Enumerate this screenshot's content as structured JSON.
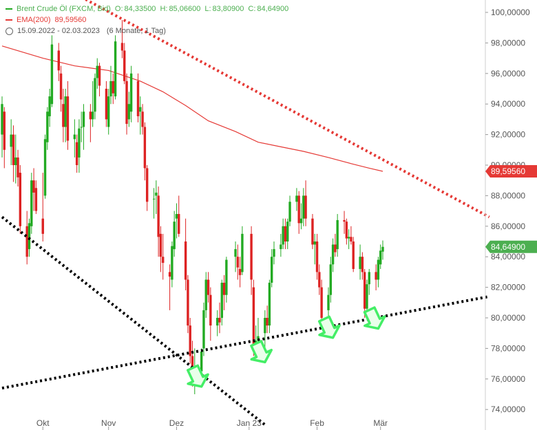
{
  "legend": {
    "instrument": "Brent Crude Öl (FXCM, Bid)",
    "o_label": "O:",
    "o_value": "84,33500",
    "h_label": "H:",
    "h_value": "85,06600",
    "l_label": "L:",
    "l_value": "83,80900",
    "c_label": "C:",
    "c_value": "84,64900",
    "ema_label": "EMA(200)",
    "ema_value": "89,59560",
    "range": "15.09.2022 - 02.03.2023",
    "period": "(6 Monate, 1 Tag)"
  },
  "badges": {
    "ema": "89,59560",
    "last": "84,64900"
  },
  "colors": {
    "up": "#22aa22",
    "down": "#dd2222",
    "ema": "#e53935",
    "trend_red": "#e53935",
    "trend_black": "#000000",
    "arrow": "#44ee66",
    "badge_ema": "#e53935",
    "badge_last": "#4caf50"
  },
  "chart_data": {
    "type": "candlestick",
    "ylim": [
      73.0,
      101.0
    ],
    "y_ticks": [
      "100,00000",
      "98,00000",
      "96,00000",
      "94,00000",
      "92,00000",
      "90,00000",
      "88,00000",
      "86,00000",
      "84,00000",
      "82,00000",
      "80,00000",
      "78,00000",
      "76,00000",
      "74,00000"
    ],
    "y_tick_values": [
      100,
      98,
      96,
      94,
      92,
      90,
      88,
      86,
      84,
      82,
      80,
      78,
      76,
      74
    ],
    "x_ticks": [
      {
        "label": "Okt",
        "date": "2022-10-03"
      },
      {
        "label": "Nov",
        "date": "2022-11-01"
      },
      {
        "label": "Dez",
        "date": "2022-12-01"
      },
      {
        "label": "Jan 23",
        "date": "2023-01-02"
      },
      {
        "label": "Feb",
        "date": "2023-02-01"
      },
      {
        "label": "Mär",
        "date": "2023-03-01"
      }
    ],
    "candles": [
      {
        "d": "2022-09-15",
        "o": 92.0,
        "h": 94.5,
        "l": 90.5,
        "c": 94.0
      },
      {
        "d": "2022-09-16",
        "o": 93.5,
        "h": 93.8,
        "l": 89.8,
        "c": 91.0
      },
      {
        "d": "2022-09-19",
        "o": 91.2,
        "h": 93.0,
        "l": 90.0,
        "c": 92.0
      },
      {
        "d": "2022-09-20",
        "o": 92.0,
        "h": 92.6,
        "l": 88.9,
        "c": 90.0
      },
      {
        "d": "2022-09-21",
        "o": 90.0,
        "h": 92.0,
        "l": 88.8,
        "c": 90.5
      },
      {
        "d": "2022-09-22",
        "o": 90.5,
        "h": 91.0,
        "l": 88.6,
        "c": 89.2
      },
      {
        "d": "2022-09-23",
        "o": 89.5,
        "h": 90.0,
        "l": 85.5,
        "c": 86.0
      },
      {
        "d": "2022-09-26",
        "o": 86.0,
        "h": 87.0,
        "l": 83.5,
        "c": 84.0
      },
      {
        "d": "2022-09-27",
        "o": 84.5,
        "h": 86.5,
        "l": 84.0,
        "c": 86.2
      },
      {
        "d": "2022-09-28",
        "o": 86.0,
        "h": 89.5,
        "l": 85.5,
        "c": 89.0
      },
      {
        "d": "2022-09-29",
        "o": 89.0,
        "h": 89.8,
        "l": 87.0,
        "c": 88.2
      },
      {
        "d": "2022-09-30",
        "o": 88.5,
        "h": 89.0,
        "l": 86.8,
        "c": 87.0
      },
      {
        "d": "2022-10-03",
        "o": 86.5,
        "h": 89.5,
        "l": 85.0,
        "c": 85.5
      },
      {
        "d": "2022-10-04",
        "o": 88.0,
        "h": 92.0,
        "l": 87.8,
        "c": 91.7
      },
      {
        "d": "2022-10-05",
        "o": 91.5,
        "h": 93.8,
        "l": 91.0,
        "c": 93.5
      },
      {
        "d": "2022-10-06",
        "o": 93.2,
        "h": 95.0,
        "l": 92.5,
        "c": 94.5
      },
      {
        "d": "2022-10-07",
        "o": 94.0,
        "h": 98.5,
        "l": 93.8,
        "c": 97.9
      },
      {
        "d": "2022-10-10",
        "o": 97.5,
        "h": 98.0,
        "l": 95.5,
        "c": 96.2
      },
      {
        "d": "2022-10-11",
        "o": 96.0,
        "h": 96.5,
        "l": 93.5,
        "c": 94.3
      },
      {
        "d": "2022-10-12",
        "o": 94.0,
        "h": 95.0,
        "l": 91.5,
        "c": 92.5
      },
      {
        "d": "2022-10-13",
        "o": 92.5,
        "h": 95.0,
        "l": 91.5,
        "c": 94.5
      },
      {
        "d": "2022-10-14",
        "o": 94.5,
        "h": 95.5,
        "l": 91.0,
        "c": 91.6
      },
      {
        "d": "2022-10-17",
        "o": 91.7,
        "h": 93.0,
        "l": 90.5,
        "c": 92.0
      },
      {
        "d": "2022-10-18",
        "o": 91.5,
        "h": 92.0,
        "l": 89.5,
        "c": 90.0
      },
      {
        "d": "2022-10-19",
        "o": 90.5,
        "h": 93.0,
        "l": 89.5,
        "c": 92.4
      },
      {
        "d": "2022-10-20",
        "o": 92.5,
        "h": 93.5,
        "l": 91.5,
        "c": 92.5
      },
      {
        "d": "2022-10-21",
        "o": 92.5,
        "h": 94.0,
        "l": 91.0,
        "c": 93.5
      },
      {
        "d": "2022-10-24",
        "o": 93.5,
        "h": 94.0,
        "l": 91.5,
        "c": 93.0
      },
      {
        "d": "2022-10-25",
        "o": 93.0,
        "h": 95.5,
        "l": 92.5,
        "c": 93.5
      },
      {
        "d": "2022-10-26",
        "o": 93.5,
        "h": 96.0,
        "l": 93.0,
        "c": 95.7
      },
      {
        "d": "2022-10-27",
        "o": 95.7,
        "h": 97.0,
        "l": 95.0,
        "c": 96.5
      },
      {
        "d": "2022-10-28",
        "o": 96.5,
        "h": 96.7,
        "l": 94.5,
        "c": 95.2
      },
      {
        "d": "2022-10-31",
        "o": 95.0,
        "h": 95.5,
        "l": 92.5,
        "c": 93.0
      },
      {
        "d": "2022-11-01",
        "o": 92.5,
        "h": 95.0,
        "l": 92.0,
        "c": 94.5
      },
      {
        "d": "2022-11-02",
        "o": 94.5,
        "h": 96.5,
        "l": 94.0,
        "c": 95.5
      },
      {
        "d": "2022-11-03",
        "o": 95.5,
        "h": 96.0,
        "l": 94.0,
        "c": 94.7
      },
      {
        "d": "2022-11-04",
        "o": 94.5,
        "h": 98.5,
        "l": 94.3,
        "c": 98.1
      },
      {
        "d": "2022-11-07",
        "o": 98.0,
        "h": 99.5,
        "l": 97.0,
        "c": 97.5
      },
      {
        "d": "2022-11-08",
        "o": 97.5,
        "h": 98.0,
        "l": 95.3,
        "c": 95.5
      },
      {
        "d": "2022-11-09",
        "o": 95.5,
        "h": 96.0,
        "l": 92.0,
        "c": 92.7
      },
      {
        "d": "2022-11-10",
        "o": 93.0,
        "h": 94.8,
        "l": 92.5,
        "c": 94.0
      },
      {
        "d": "2022-11-11",
        "o": 93.5,
        "h": 96.5,
        "l": 92.8,
        "c": 96.0
      },
      {
        "d": "2022-11-14",
        "o": 95.5,
        "h": 96.0,
        "l": 92.8,
        "c": 93.2
      },
      {
        "d": "2022-11-15",
        "o": 93.5,
        "h": 94.5,
        "l": 92.0,
        "c": 93.8
      },
      {
        "d": "2022-11-16",
        "o": 93.5,
        "h": 94.0,
        "l": 92.0,
        "c": 92.5
      },
      {
        "d": "2022-11-17",
        "o": 92.5,
        "h": 92.8,
        "l": 89.0,
        "c": 89.8
      },
      {
        "d": "2022-11-18",
        "o": 89.8,
        "h": 90.0,
        "l": 87.0,
        "c": 87.6
      },
      {
        "d": "2022-11-21",
        "o": 87.8,
        "h": 88.5,
        "l": 86.5,
        "c": 87.8
      },
      {
        "d": "2022-11-22",
        "o": 88.0,
        "h": 89.0,
        "l": 86.8,
        "c": 88.2
      },
      {
        "d": "2022-11-23",
        "o": 88.0,
        "h": 88.6,
        "l": 84.0,
        "c": 85.3
      },
      {
        "d": "2022-11-24",
        "o": 85.5,
        "h": 86.0,
        "l": 83.0,
        "c": 84.0
      },
      {
        "d": "2022-11-25",
        "o": 84.0,
        "h": 85.5,
        "l": 82.5,
        "c": 83.6
      },
      {
        "d": "2022-11-28",
        "o": 83.0,
        "h": 83.5,
        "l": 80.5,
        "c": 82.7
      },
      {
        "d": "2022-11-29",
        "o": 82.5,
        "h": 85.0,
        "l": 82.0,
        "c": 84.7
      },
      {
        "d": "2022-11-30",
        "o": 84.5,
        "h": 87.0,
        "l": 84.0,
        "c": 86.3
      },
      {
        "d": "2022-12-01",
        "o": 86.5,
        "h": 87.5,
        "l": 85.2,
        "c": 86.8
      },
      {
        "d": "2022-12-02",
        "o": 86.8,
        "h": 88.0,
        "l": 85.3,
        "c": 85.5
      },
      {
        "d": "2022-12-05",
        "o": 85.0,
        "h": 86.5,
        "l": 81.8,
        "c": 82.5
      },
      {
        "d": "2022-12-06",
        "o": 82.5,
        "h": 82.8,
        "l": 79.0,
        "c": 79.5
      },
      {
        "d": "2022-12-07",
        "o": 79.5,
        "h": 80.0,
        "l": 77.0,
        "c": 77.5
      },
      {
        "d": "2022-12-08",
        "o": 77.5,
        "h": 78.5,
        "l": 75.5,
        "c": 76.0
      },
      {
        "d": "2022-12-09",
        "o": 76.5,
        "h": 78.0,
        "l": 75.0,
        "c": 76.5
      },
      {
        "d": "2022-12-12",
        "o": 76.5,
        "h": 78.0,
        "l": 75.5,
        "c": 77.8
      },
      {
        "d": "2022-12-13",
        "o": 78.0,
        "h": 81.0,
        "l": 77.5,
        "c": 80.5
      },
      {
        "d": "2022-12-14",
        "o": 80.5,
        "h": 83.0,
        "l": 80.0,
        "c": 82.5
      },
      {
        "d": "2022-12-15",
        "o": 82.5,
        "h": 83.0,
        "l": 81.0,
        "c": 81.5
      },
      {
        "d": "2022-12-16",
        "o": 81.5,
        "h": 82.0,
        "l": 78.5,
        "c": 79.5
      },
      {
        "d": "2022-12-19",
        "o": 79.5,
        "h": 80.5,
        "l": 78.8,
        "c": 80.0
      },
      {
        "d": "2022-12-20",
        "o": 80.0,
        "h": 81.0,
        "l": 79.0,
        "c": 79.7
      },
      {
        "d": "2022-12-21",
        "o": 80.0,
        "h": 82.5,
        "l": 79.5,
        "c": 82.3
      },
      {
        "d": "2022-12-22",
        "o": 82.3,
        "h": 82.8,
        "l": 80.5,
        "c": 81.5
      },
      {
        "d": "2022-12-23",
        "o": 81.5,
        "h": 84.0,
        "l": 81.0,
        "c": 83.8
      },
      {
        "d": "2022-12-27",
        "o": 84.0,
        "h": 85.0,
        "l": 83.0,
        "c": 84.5
      },
      {
        "d": "2022-12-28",
        "o": 84.0,
        "h": 84.8,
        "l": 82.5,
        "c": 83.3
      },
      {
        "d": "2022-12-29",
        "o": 83.2,
        "h": 84.0,
        "l": 82.0,
        "c": 82.8
      },
      {
        "d": "2022-12-30",
        "o": 83.0,
        "h": 86.0,
        "l": 82.8,
        "c": 85.5
      },
      {
        "d": "2023-01-03",
        "o": 85.5,
        "h": 86.0,
        "l": 81.5,
        "c": 82.5
      },
      {
        "d": "2023-01-04",
        "o": 82.0,
        "h": 82.5,
        "l": 77.5,
        "c": 78.0
      },
      {
        "d": "2023-01-05",
        "o": 78.0,
        "h": 79.5,
        "l": 77.5,
        "c": 78.5
      },
      {
        "d": "2023-01-06",
        "o": 78.5,
        "h": 80.0,
        "l": 78.0,
        "c": 78.8
      },
      {
        "d": "2023-01-09",
        "o": 79.0,
        "h": 80.5,
        "l": 78.0,
        "c": 80.0
      },
      {
        "d": "2023-01-10",
        "o": 80.0,
        "h": 80.8,
        "l": 79.0,
        "c": 79.5
      },
      {
        "d": "2023-01-11",
        "o": 79.5,
        "h": 82.5,
        "l": 79.0,
        "c": 82.3
      },
      {
        "d": "2023-01-12",
        "o": 82.3,
        "h": 84.5,
        "l": 82.0,
        "c": 84.0
      },
      {
        "d": "2023-01-13",
        "o": 84.0,
        "h": 85.0,
        "l": 83.5,
        "c": 84.5
      },
      {
        "d": "2023-01-16",
        "o": 84.5,
        "h": 85.5,
        "l": 84.0,
        "c": 84.8
      },
      {
        "d": "2023-01-17",
        "o": 84.8,
        "h": 86.5,
        "l": 84.5,
        "c": 86.0
      },
      {
        "d": "2023-01-18",
        "o": 86.0,
        "h": 86.5,
        "l": 84.5,
        "c": 85.0
      },
      {
        "d": "2023-01-19",
        "o": 85.0,
        "h": 86.5,
        "l": 84.5,
        "c": 86.3
      },
      {
        "d": "2023-01-20",
        "o": 86.3,
        "h": 88.0,
        "l": 86.0,
        "c": 87.6
      },
      {
        "d": "2023-01-23",
        "o": 87.6,
        "h": 88.5,
        "l": 87.0,
        "c": 88.0
      },
      {
        "d": "2023-01-24",
        "o": 88.0,
        "h": 88.3,
        "l": 85.5,
        "c": 86.2
      },
      {
        "d": "2023-01-25",
        "o": 86.2,
        "h": 87.5,
        "l": 85.8,
        "c": 86.5
      },
      {
        "d": "2023-01-26",
        "o": 86.5,
        "h": 88.5,
        "l": 86.0,
        "c": 88.0
      },
      {
        "d": "2023-01-27",
        "o": 88.0,
        "h": 89.0,
        "l": 86.0,
        "c": 86.5
      },
      {
        "d": "2023-01-30",
        "o": 86.5,
        "h": 86.8,
        "l": 84.5,
        "c": 84.8
      },
      {
        "d": "2023-01-31",
        "o": 84.8,
        "h": 85.5,
        "l": 83.5,
        "c": 85.0
      },
      {
        "d": "2023-02-01",
        "o": 85.0,
        "h": 85.5,
        "l": 82.5,
        "c": 83.0
      },
      {
        "d": "2023-02-02",
        "o": 83.0,
        "h": 83.5,
        "l": 81.5,
        "c": 82.0
      },
      {
        "d": "2023-02-03",
        "o": 82.0,
        "h": 82.5,
        "l": 79.5,
        "c": 80.0
      },
      {
        "d": "2023-02-06",
        "o": 80.5,
        "h": 82.0,
        "l": 80.0,
        "c": 81.5
      },
      {
        "d": "2023-02-07",
        "o": 81.5,
        "h": 84.0,
        "l": 81.0,
        "c": 83.5
      },
      {
        "d": "2023-02-08",
        "o": 83.5,
        "h": 85.2,
        "l": 83.0,
        "c": 84.8
      },
      {
        "d": "2023-02-09",
        "o": 84.8,
        "h": 85.5,
        "l": 84.0,
        "c": 84.3
      },
      {
        "d": "2023-02-10",
        "o": 84.5,
        "h": 86.8,
        "l": 84.0,
        "c": 86.4
      },
      {
        "d": "2023-02-13",
        "o": 86.4,
        "h": 87.0,
        "l": 85.5,
        "c": 86.3
      },
      {
        "d": "2023-02-14",
        "o": 86.3,
        "h": 86.5,
        "l": 84.8,
        "c": 85.2
      },
      {
        "d": "2023-02-15",
        "o": 85.2,
        "h": 85.8,
        "l": 84.5,
        "c": 85.3
      },
      {
        "d": "2023-02-16",
        "o": 85.3,
        "h": 86.0,
        "l": 84.8,
        "c": 85.0
      },
      {
        "d": "2023-02-17",
        "o": 85.0,
        "h": 85.3,
        "l": 83.0,
        "c": 83.2
      },
      {
        "d": "2023-02-20",
        "o": 83.2,
        "h": 84.8,
        "l": 82.5,
        "c": 84.0
      },
      {
        "d": "2023-02-21",
        "o": 84.0,
        "h": 84.3,
        "l": 82.5,
        "c": 83.0
      },
      {
        "d": "2023-02-22",
        "o": 83.0,
        "h": 83.2,
        "l": 80.0,
        "c": 80.6
      },
      {
        "d": "2023-02-23",
        "o": 80.6,
        "h": 82.5,
        "l": 80.5,
        "c": 82.2
      },
      {
        "d": "2023-02-24",
        "o": 82.2,
        "h": 83.2,
        "l": 81.5,
        "c": 83.0
      },
      {
        "d": "2023-02-27",
        "o": 83.0,
        "h": 83.5,
        "l": 81.8,
        "c": 82.5
      },
      {
        "d": "2023-02-28",
        "o": 82.5,
        "h": 84.0,
        "l": 82.0,
        "c": 83.8
      },
      {
        "d": "2023-03-01",
        "o": 83.5,
        "h": 84.8,
        "l": 83.2,
        "c": 84.4
      },
      {
        "d": "2023-03-02",
        "o": 84.335,
        "h": 85.066,
        "l": 83.809,
        "c": 84.649
      }
    ],
    "ema200": [
      {
        "d": "2022-09-15",
        "v": 97.8
      },
      {
        "d": "2022-10-03",
        "v": 97.0
      },
      {
        "d": "2022-10-17",
        "v": 96.5
      },
      {
        "d": "2022-11-01",
        "v": 96.2
      },
      {
        "d": "2022-11-15",
        "v": 95.5
      },
      {
        "d": "2022-11-25",
        "v": 94.8
      },
      {
        "d": "2022-12-05",
        "v": 93.9
      },
      {
        "d": "2022-12-15",
        "v": 92.9
      },
      {
        "d": "2022-12-27",
        "v": 92.2
      },
      {
        "d": "2023-01-06",
        "v": 91.5
      },
      {
        "d": "2023-01-16",
        "v": 91.2
      },
      {
        "d": "2023-01-26",
        "v": 90.9
      },
      {
        "d": "2023-02-06",
        "v": 90.5
      },
      {
        "d": "2023-02-16",
        "v": 90.1
      },
      {
        "d": "2023-02-24",
        "v": 89.8
      },
      {
        "d": "2023-03-02",
        "v": 89.5956
      }
    ],
    "trendlines": [
      {
        "style": "red-dotted",
        "from": {
          "d": "2022-10-20",
          "v": 101.0
        },
        "to": {
          "d": "2023-04-18",
          "v": 86.6
        }
      },
      {
        "style": "black-dotted",
        "from": {
          "d": "2022-09-15",
          "v": 75.4
        },
        "to": {
          "d": "2023-04-18",
          "v": 81.4
        }
      },
      {
        "style": "black-dotted",
        "from": {
          "d": "2022-09-15",
          "v": 86.6
        },
        "to": {
          "d": "2023-01-09",
          "v": 73.0
        }
      }
    ],
    "arrows": [
      {
        "d": "2022-12-12",
        "v": 75.5
      },
      {
        "d": "2023-01-09",
        "v": 77.1
      },
      {
        "d": "2023-02-08",
        "v": 78.7
      },
      {
        "d": "2023-02-28",
        "v": 79.3
      }
    ]
  }
}
